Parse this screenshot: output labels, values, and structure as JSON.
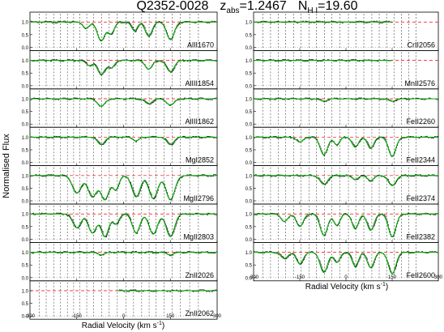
{
  "chart_data": {
    "type": "line",
    "title": {
      "quasar": "Q2352-0028",
      "z_main": "z",
      "z_sub": "abs",
      "z_value": "=1.2467",
      "n_main": "N",
      "n_sub": "H I",
      "n_value": "=19.60"
    },
    "ylabel": "Normalised Flux",
    "xlabel": "Radial Velocity (km s",
    "xlabel_sup": "-1",
    "xlabel_close": ")",
    "xlim": [
      -300,
      300
    ],
    "ylim": [
      0,
      1.2
    ],
    "continuum_level": 1.0,
    "x_tick_values": [
      -300,
      -150,
      0,
      150,
      300
    ],
    "x_tick_labels": [
      "-300",
      "-150",
      "0",
      "150",
      "300"
    ],
    "y_tick_labels": [
      "1.0",
      "0.5",
      "0.0"
    ],
    "grid": false,
    "columns": [
      {
        "component_velocities": [
          -270,
          -248,
          -224,
          -202,
          -180,
          -160,
          -140,
          -118,
          -96,
          -70,
          -46,
          -20,
          8,
          32,
          58,
          82,
          104,
          130,
          156,
          182,
          212,
          240
        ],
        "panels": [
          {
            "label": "AlII1670",
            "absorption": [
              {
                "v": -120,
                "depth": 0.25,
                "width": 10
              },
              {
                "v": -72,
                "depth": 0.75,
                "width": 12
              },
              {
                "v": -40,
                "depth": 0.45,
                "width": 10
              },
              {
                "v": 35,
                "depth": 0.35,
                "width": 9
              },
              {
                "v": 80,
                "depth": 0.55,
                "width": 11
              },
              {
                "v": 150,
                "depth": 0.7,
                "width": 12
              }
            ]
          },
          {
            "label": "AlIII1854",
            "absorption": [
              {
                "v": -110,
                "depth": 0.2,
                "width": 10
              },
              {
                "v": -72,
                "depth": 0.55,
                "width": 12
              },
              {
                "v": -40,
                "depth": 0.3,
                "width": 10
              },
              {
                "v": 80,
                "depth": 0.35,
                "width": 11
              },
              {
                "v": 150,
                "depth": 0.45,
                "width": 12
              }
            ]
          },
          {
            "label": "AlIII1862",
            "absorption": [
              {
                "v": -72,
                "depth": 0.3,
                "width": 12
              },
              {
                "v": 80,
                "depth": 0.2,
                "width": 11
              },
              {
                "v": 150,
                "depth": 0.25,
                "width": 12
              }
            ]
          },
          {
            "label": "MgI2852",
            "absorption": [
              {
                "v": -72,
                "depth": 0.3,
                "width": 11
              },
              {
                "v": 40,
                "depth": 0.15,
                "width": 9
              },
              {
                "v": 150,
                "depth": 0.3,
                "width": 11
              }
            ]
          },
          {
            "label": "MgII2796",
            "absorption": [
              {
                "v": -150,
                "depth": 0.7,
                "width": 14
              },
              {
                "v": -100,
                "depth": 0.85,
                "width": 14
              },
              {
                "v": -60,
                "depth": 0.95,
                "width": 13
              },
              {
                "v": -25,
                "depth": 0.55,
                "width": 10
              },
              {
                "v": 40,
                "depth": 0.85,
                "width": 13
              },
              {
                "v": 95,
                "depth": 0.9,
                "width": 14
              },
              {
                "v": 150,
                "depth": 0.95,
                "width": 14
              }
            ]
          },
          {
            "label": "MgII2803",
            "absorption": [
              {
                "v": -150,
                "depth": 0.55,
                "width": 13
              },
              {
                "v": -100,
                "depth": 0.75,
                "width": 13
              },
              {
                "v": -60,
                "depth": 0.9,
                "width": 12
              },
              {
                "v": -25,
                "depth": 0.4,
                "width": 10
              },
              {
                "v": 40,
                "depth": 0.75,
                "width": 12
              },
              {
                "v": 95,
                "depth": 0.8,
                "width": 13
              },
              {
                "v": 150,
                "depth": 0.9,
                "width": 13
              }
            ]
          },
          {
            "label": "ZnII2026",
            "absorption": [
              {
                "v": -72,
                "depth": 0.1,
                "width": 10
              },
              {
                "v": 150,
                "depth": 0.1,
                "width": 10
              }
            ]
          },
          {
            "label": "ZnII2062",
            "absorption": [],
            "x_start": -20
          }
        ]
      },
      {
        "component_velocities": [
          -270,
          -245,
          -220,
          -196,
          -170,
          -146,
          -120,
          -96,
          -70,
          -46,
          -20,
          8,
          32,
          58,
          84,
          108,
          132,
          156,
          180,
          204,
          228
        ],
        "panels": [
          {
            "label": "CrII2056",
            "absorption": [],
            "x_end": 150
          },
          {
            "label": "MnII2576",
            "absorption": [],
            "x_end": 150
          },
          {
            "label": "FeII2260",
            "absorption": [
              {
                "v": -72,
                "depth": 0.1,
                "width": 10
              },
              {
                "v": 150,
                "depth": 0.1,
                "width": 10
              }
            ]
          },
          {
            "label": "FeII2344",
            "absorption": [
              {
                "v": -150,
                "depth": 0.2,
                "width": 10
              },
              {
                "v": -72,
                "depth": 0.7,
                "width": 12
              },
              {
                "v": -30,
                "depth": 0.3,
                "width": 9
              },
              {
                "v": 30,
                "depth": 0.4,
                "width": 10
              },
              {
                "v": 80,
                "depth": 0.45,
                "width": 10
              },
              {
                "v": 150,
                "depth": 0.75,
                "width": 12
              }
            ]
          },
          {
            "label": "FeII2374",
            "absorption": [
              {
                "v": -72,
                "depth": 0.35,
                "width": 12
              },
              {
                "v": 30,
                "depth": 0.15,
                "width": 10
              },
              {
                "v": 80,
                "depth": 0.2,
                "width": 10
              },
              {
                "v": 150,
                "depth": 0.4,
                "width": 12
              }
            ]
          },
          {
            "label": "FeII2382",
            "absorption": [
              {
                "v": -200,
                "depth": 0.3,
                "width": 11
              },
              {
                "v": -150,
                "depth": 0.5,
                "width": 11
              },
              {
                "v": -72,
                "depth": 0.85,
                "width": 12
              },
              {
                "v": -30,
                "depth": 0.45,
                "width": 10
              },
              {
                "v": 30,
                "depth": 0.6,
                "width": 10
              },
              {
                "v": 80,
                "depth": 0.65,
                "width": 11
              },
              {
                "v": 150,
                "depth": 0.9,
                "width": 12
              }
            ]
          },
          {
            "label": "FeII2600",
            "absorption": [
              {
                "v": -200,
                "depth": 0.25,
                "width": 11
              },
              {
                "v": -150,
                "depth": 0.45,
                "width": 11
              },
              {
                "v": -72,
                "depth": 0.8,
                "width": 12
              },
              {
                "v": -30,
                "depth": 0.4,
                "width": 10
              },
              {
                "v": 30,
                "depth": 0.55,
                "width": 10
              },
              {
                "v": 80,
                "depth": 0.6,
                "width": 11
              },
              {
                "v": 150,
                "depth": 0.85,
                "width": 12
              }
            ]
          }
        ]
      }
    ],
    "colors": {
      "data": "#000000",
      "model": "#00aa00",
      "continuum": "#ff0000",
      "component_marks": "#444444"
    }
  }
}
